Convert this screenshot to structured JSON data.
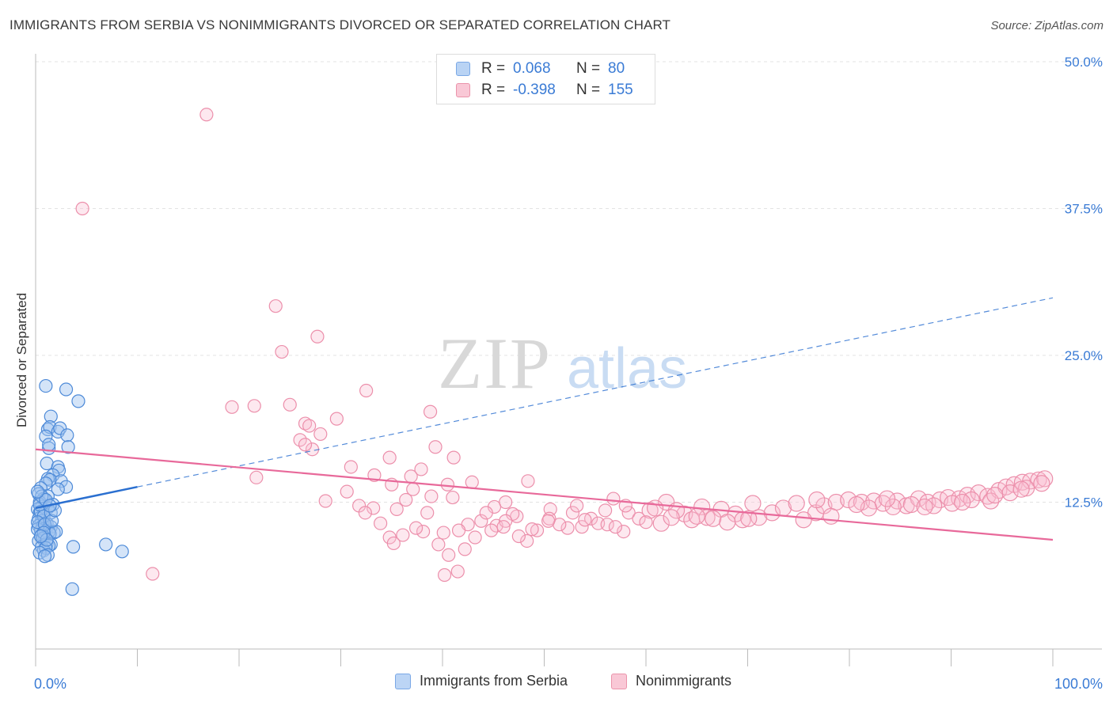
{
  "title": "IMMIGRANTS FROM SERBIA VS NONIMMIGRANTS DIVORCED OR SEPARATED CORRELATION CHART",
  "source": "Source: ZipAtlas.com",
  "watermark": {
    "zip": "ZIP",
    "atlas": "atlas"
  },
  "legend_top": [
    {
      "name": "Immigrants from Serbia",
      "r_label": "R =",
      "r_value": "0.068",
      "n_label": "N =",
      "n_value": "80",
      "color": "#a9c8f0",
      "stroke": "#6a9de0"
    },
    {
      "name": "Nonimmigrants",
      "r_label": "R =",
      "r_value": "-0.398",
      "n_label": "N =",
      "n_value": "155",
      "color": "#f7bfd0",
      "stroke": "#e9879f"
    }
  ],
  "legend_bottom": [
    {
      "label": "Immigrants from Serbia",
      "color": "#bcd5f5",
      "stroke": "#7aa8e6"
    },
    {
      "label": "Nonimmigrants",
      "color": "#f9c8d6",
      "stroke": "#eb94ab"
    }
  ],
  "colors": {
    "blue_point_fill": "rgba(160,195,240,0.45)",
    "blue_point_stroke": "#4d8ad8",
    "blue_line": "#2a6fd0",
    "pink_point_fill": "rgba(248,190,208,0.35)",
    "pink_point_stroke": "#ec8fab",
    "pink_line": "#e8699a",
    "tick_label": "#3a7bd5",
    "grid": "#e3e3e3"
  },
  "chart_data": {
    "type": "scatter",
    "ylabel": "Divorced or Separated",
    "xlim": [
      0,
      100
    ],
    "ylim": [
      0,
      50
    ],
    "y_ticks": [
      {
        "value": 12.5,
        "label": "12.5%"
      },
      {
        "value": 25.0,
        "label": "25.0%"
      },
      {
        "value": 37.5,
        "label": "37.5%"
      },
      {
        "value": 50.0,
        "label": "50.0%"
      }
    ],
    "x_tick_labels": {
      "min": "0.0%",
      "max": "100.0%"
    },
    "grid": true,
    "legend_position": "top-center",
    "series": [
      {
        "name": "Immigrants from Serbia",
        "trend": {
          "x0": 0,
          "y0": 12.0,
          "x1": 10.0,
          "y1": 13.8,
          "dash_x1": 100,
          "dash_y1": 29.9
        },
        "points": [
          [
            1.0,
            22.4
          ],
          [
            3.0,
            22.1
          ],
          [
            4.2,
            21.1
          ],
          [
            1.5,
            19.8
          ],
          [
            1.2,
            18.7
          ],
          [
            1.4,
            18.9
          ],
          [
            2.2,
            18.5
          ],
          [
            2.4,
            18.8
          ],
          [
            3.1,
            18.2
          ],
          [
            1.0,
            18.1
          ],
          [
            1.3,
            17.1
          ],
          [
            1.3,
            17.4
          ],
          [
            3.2,
            17.2
          ],
          [
            1.1,
            15.8
          ],
          [
            2.2,
            15.5
          ],
          [
            2.3,
            15.2
          ],
          [
            1.7,
            14.8
          ],
          [
            2.5,
            14.3
          ],
          [
            1.2,
            14.5
          ],
          [
            1.4,
            14.4
          ],
          [
            1.0,
            14.1
          ],
          [
            0.5,
            13.7
          ],
          [
            3.0,
            13.8
          ],
          [
            2.2,
            13.6
          ],
          [
            0.3,
            13.2
          ],
          [
            0.8,
            12.8
          ],
          [
            1.2,
            13.0
          ],
          [
            0.4,
            12.5
          ],
          [
            0.6,
            12.1
          ],
          [
            1.7,
            12.3
          ],
          [
            0.2,
            11.9
          ],
          [
            1.2,
            12.0
          ],
          [
            0.4,
            11.6
          ],
          [
            0.8,
            11.5
          ],
          [
            0.3,
            11.1
          ],
          [
            0.6,
            10.9
          ],
          [
            1.1,
            10.7
          ],
          [
            0.3,
            10.5
          ],
          [
            0.7,
            10.5
          ],
          [
            1.0,
            10.3
          ],
          [
            1.5,
            10.4
          ],
          [
            0.5,
            10.1
          ],
          [
            1.0,
            10.1
          ],
          [
            1.8,
            9.9
          ],
          [
            1.3,
            10.0
          ],
          [
            0.2,
            10.2
          ],
          [
            1.4,
            9.8
          ],
          [
            2.0,
            10.0
          ],
          [
            0.6,
            9.7
          ],
          [
            0.9,
            9.5
          ],
          [
            0.3,
            9.2
          ],
          [
            0.7,
            9.4
          ],
          [
            1.1,
            9.0
          ],
          [
            1.5,
            8.9
          ],
          [
            0.6,
            8.7
          ],
          [
            1.3,
            8.8
          ],
          [
            0.8,
            8.4
          ],
          [
            1.0,
            8.6
          ],
          [
            0.4,
            8.2
          ],
          [
            1.2,
            8.0
          ],
          [
            0.9,
            7.9
          ],
          [
            3.7,
            8.7
          ],
          [
            6.9,
            8.9
          ],
          [
            8.5,
            8.3
          ],
          [
            3.6,
            5.1
          ],
          [
            0.5,
            11.7
          ],
          [
            0.8,
            11.3
          ],
          [
            1.5,
            11.6
          ],
          [
            0.2,
            10.8
          ],
          [
            0.9,
            10.6
          ],
          [
            1.6,
            10.9
          ],
          [
            0.4,
            12.3
          ],
          [
            1.9,
            11.8
          ],
          [
            0.6,
            13.0
          ],
          [
            1.0,
            12.7
          ],
          [
            0.2,
            13.4
          ],
          [
            1.4,
            12.2
          ],
          [
            0.8,
            9.9
          ],
          [
            1.1,
            9.3
          ],
          [
            0.5,
            9.6
          ]
        ]
      },
      {
        "name": "Nonimmigrants",
        "trend": {
          "x0": 0,
          "y0": 17.0,
          "x1": 100,
          "y1": 9.3
        },
        "points": [
          [
            16.8,
            45.5
          ],
          [
            4.6,
            37.5
          ],
          [
            23.6,
            29.2
          ],
          [
            27.7,
            26.6
          ],
          [
            24.2,
            25.3
          ],
          [
            32.5,
            22.0
          ],
          [
            19.3,
            20.6
          ],
          [
            21.5,
            20.7
          ],
          [
            25.0,
            20.8
          ],
          [
            26.5,
            19.2
          ],
          [
            29.6,
            19.6
          ],
          [
            26.9,
            19.0
          ],
          [
            26.0,
            17.8
          ],
          [
            28.0,
            18.3
          ],
          [
            38.8,
            20.2
          ],
          [
            27.2,
            17.0
          ],
          [
            39.3,
            17.2
          ],
          [
            34.8,
            16.3
          ],
          [
            41.1,
            16.3
          ],
          [
            31.0,
            15.5
          ],
          [
            37.9,
            15.3
          ],
          [
            33.3,
            14.8
          ],
          [
            21.7,
            14.6
          ],
          [
            36.9,
            14.7
          ],
          [
            42.9,
            14.2
          ],
          [
            35.0,
            14.0
          ],
          [
            37.1,
            13.6
          ],
          [
            40.5,
            14.0
          ],
          [
            48.4,
            14.3
          ],
          [
            30.6,
            13.4
          ],
          [
            38.9,
            13.0
          ],
          [
            41.0,
            12.9
          ],
          [
            31.8,
            12.2
          ],
          [
            33.2,
            12.0
          ],
          [
            36.4,
            12.7
          ],
          [
            46.2,
            12.5
          ],
          [
            56.8,
            12.8
          ],
          [
            62.0,
            12.5
          ],
          [
            65.5,
            12.1
          ],
          [
            50.6,
            11.9
          ],
          [
            52.8,
            11.6
          ],
          [
            47.3,
            11.3
          ],
          [
            58.3,
            11.6
          ],
          [
            54.6,
            11.1
          ],
          [
            60.4,
            11.8
          ],
          [
            63.8,
            11.5
          ],
          [
            67.4,
            11.9
          ],
          [
            70.5,
            12.4
          ],
          [
            71.1,
            11.2
          ],
          [
            59.3,
            11.1
          ],
          [
            61.5,
            10.7
          ],
          [
            64.5,
            11.0
          ],
          [
            68.8,
            11.5
          ],
          [
            66.0,
            11.2
          ],
          [
            52.3,
            10.3
          ],
          [
            55.3,
            10.7
          ],
          [
            57.8,
            10.0
          ],
          [
            53.7,
            10.4
          ],
          [
            49.3,
            10.1
          ],
          [
            45.3,
            10.5
          ],
          [
            43.8,
            10.9
          ],
          [
            46.9,
            11.5
          ],
          [
            45.1,
            12.1
          ],
          [
            44.3,
            11.6
          ],
          [
            50.5,
            11.1
          ],
          [
            56.2,
            10.6
          ],
          [
            44.8,
            10.1
          ],
          [
            38.1,
            10.0
          ],
          [
            42.5,
            10.6
          ],
          [
            40.1,
            9.9
          ],
          [
            34.8,
            9.5
          ],
          [
            32.4,
            11.6
          ],
          [
            35.5,
            11.9
          ],
          [
            38.5,
            11.6
          ],
          [
            43.2,
            9.5
          ],
          [
            48.3,
            9.2
          ],
          [
            42.2,
            8.5
          ],
          [
            36.1,
            9.7
          ],
          [
            47.5,
            9.6
          ],
          [
            33.9,
            10.7
          ],
          [
            35.2,
            9.0
          ],
          [
            46.2,
            10.9
          ],
          [
            53.2,
            12.2
          ],
          [
            56.0,
            11.8
          ],
          [
            58.0,
            12.2
          ],
          [
            60.9,
            12.0
          ],
          [
            63.0,
            11.8
          ],
          [
            66.6,
            11.1
          ],
          [
            69.5,
            11.0
          ],
          [
            72.4,
            11.6
          ],
          [
            73.5,
            12.0
          ],
          [
            74.8,
            12.4
          ],
          [
            76.7,
            11.6
          ],
          [
            77.5,
            12.2
          ],
          [
            78.7,
            12.5
          ],
          [
            79.9,
            12.7
          ],
          [
            81.2,
            12.5
          ],
          [
            82.4,
            12.6
          ],
          [
            83.3,
            12.4
          ],
          [
            84.7,
            12.6
          ],
          [
            85.6,
            12.2
          ],
          [
            86.8,
            12.8
          ],
          [
            87.7,
            12.5
          ],
          [
            88.9,
            12.7
          ],
          [
            89.7,
            12.9
          ],
          [
            90.8,
            12.8
          ],
          [
            91.6,
            13.1
          ],
          [
            92.7,
            13.3
          ],
          [
            93.6,
            13.0
          ],
          [
            94.7,
            13.5
          ],
          [
            95.4,
            13.8
          ],
          [
            96.2,
            14.0
          ],
          [
            97.0,
            14.2
          ],
          [
            97.8,
            14.3
          ],
          [
            98.6,
            14.4
          ],
          [
            99.2,
            14.5
          ],
          [
            75.5,
            11.0
          ],
          [
            78.2,
            11.3
          ],
          [
            81.9,
            12.0
          ],
          [
            84.3,
            12.1
          ],
          [
            86.1,
            12.3
          ],
          [
            88.3,
            12.2
          ],
          [
            90.1,
            12.4
          ],
          [
            92.0,
            12.7
          ],
          [
            93.9,
            12.6
          ],
          [
            95.8,
            13.3
          ],
          [
            97.4,
            13.7
          ],
          [
            76.8,
            12.7
          ],
          [
            80.7,
            12.3
          ],
          [
            83.7,
            12.8
          ],
          [
            87.4,
            12.1
          ],
          [
            91.1,
            12.5
          ],
          [
            94.3,
            13.1
          ],
          [
            96.9,
            13.6
          ],
          [
            98.9,
            14.1
          ],
          [
            70.1,
            11.1
          ],
          [
            68.0,
            10.8
          ],
          [
            65.0,
            11.3
          ],
          [
            62.5,
            11.2
          ],
          [
            60.0,
            10.8
          ],
          [
            57.0,
            10.4
          ],
          [
            54.0,
            11.0
          ],
          [
            51.5,
            10.6
          ],
          [
            48.8,
            10.2
          ],
          [
            46.0,
            10.4
          ],
          [
            41.6,
            10.1
          ],
          [
            39.6,
            8.9
          ],
          [
            37.4,
            10.3
          ],
          [
            28.5,
            12.6
          ],
          [
            41.5,
            6.6
          ],
          [
            40.6,
            8.0
          ],
          [
            11.5,
            6.4
          ],
          [
            40.2,
            6.3
          ],
          [
            50.4,
            10.9
          ],
          [
            26.5,
            17.4
          ]
        ]
      }
    ]
  }
}
